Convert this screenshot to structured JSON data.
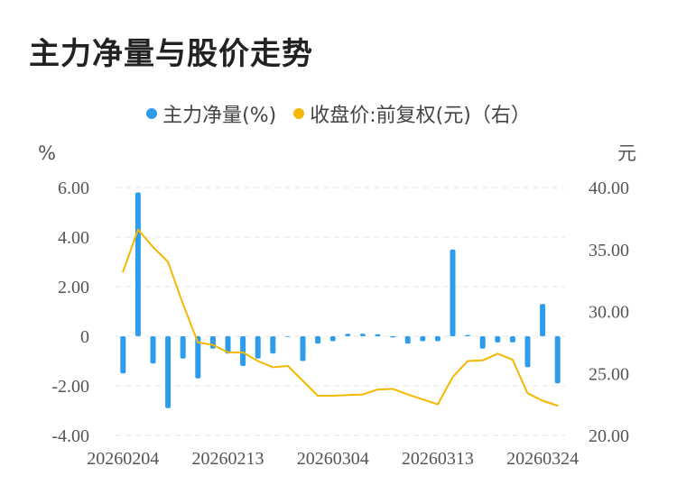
{
  "title": "主力净量与股价走势",
  "legend": {
    "bar_label": "主力净量(%)",
    "line_label": "收盘价:前复权(元)（右）"
  },
  "colors": {
    "bar": "#2d9cec",
    "line": "#f5b800",
    "grid": "#e6e6e6"
  },
  "chart_data": {
    "type": "bar+line",
    "title": "主力净量与股价走势",
    "left_axis": {
      "label": "%",
      "range": [
        -4,
        6
      ],
      "ticks": [
        "6.00",
        "4.00",
        "2.00",
        "0",
        "-2.00",
        "-4.00"
      ],
      "tick_values": [
        6,
        4,
        2,
        0,
        -2,
        -4
      ]
    },
    "right_axis": {
      "label": "元",
      "range": [
        20,
        40
      ],
      "ticks": [
        "40.00",
        "35.00",
        "30.00",
        "25.00",
        "20.00"
      ],
      "tick_values": [
        40,
        35,
        30,
        25,
        20
      ]
    },
    "x_tick_labels": [
      "20260204",
      "20260213",
      "20260304",
      "20260313",
      "20260324"
    ],
    "x_tick_index": [
      0,
      7,
      14,
      21,
      28
    ],
    "grid": true,
    "legend_position": "top-center",
    "series": [
      {
        "name": "主力净量(%)",
        "kind": "bar",
        "axis": "left",
        "values": [
          -1.5,
          5.8,
          -1.1,
          -2.9,
          -0.9,
          -1.7,
          -0.5,
          -0.7,
          -1.2,
          -0.9,
          -0.7,
          0.0,
          -1.0,
          -0.3,
          -0.2,
          0.1,
          0.1,
          0.08,
          -0.05,
          -0.3,
          -0.2,
          -0.2,
          3.5,
          0.05,
          -0.5,
          -0.25,
          -0.25,
          -1.25,
          1.3,
          -1.9
        ]
      },
      {
        "name": "收盘价:前复权(元)（右）",
        "kind": "line",
        "axis": "right",
        "values": [
          33.2,
          36.6,
          35.2,
          34.0,
          30.6,
          27.5,
          27.3,
          26.7,
          26.7,
          26.0,
          25.5,
          25.6,
          null,
          23.2,
          23.2,
          23.25,
          23.3,
          23.7,
          23.75,
          23.3,
          22.9,
          22.5,
          24.7,
          26.0,
          26.05,
          26.6,
          26.1,
          23.4,
          22.8,
          22.4
        ]
      }
    ]
  }
}
